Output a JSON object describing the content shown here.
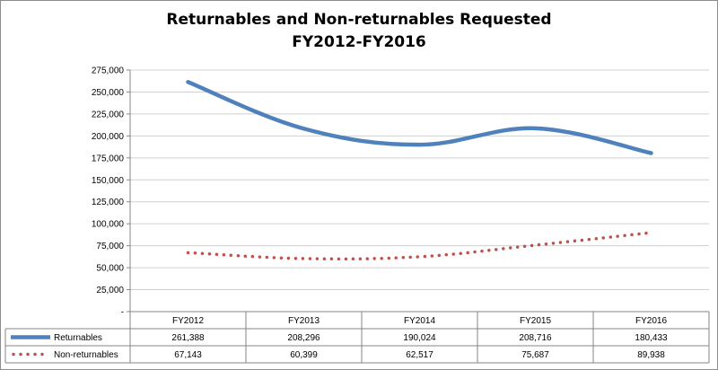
{
  "chart_data": {
    "type": "line",
    "title": "Returnables and Non-returnables Requested",
    "subtitle": "FY2012-FY2016",
    "categories": [
      "FY2012",
      "FY2013",
      "FY2014",
      "FY2015",
      "FY2016"
    ],
    "series": [
      {
        "name": "Returnables",
        "values": [
          261388,
          208296,
          190024,
          208716,
          180433
        ],
        "labels": [
          "261,388",
          "208,296",
          "190,024",
          "208,716",
          "180,433"
        ],
        "color": "#4f81bd",
        "style": "solid"
      },
      {
        "name": "Non-returnables",
        "values": [
          67143,
          60399,
          62517,
          75687,
          89938
        ],
        "labels": [
          "67,143",
          "60,399",
          "62,517",
          "75,687",
          "89,938"
        ],
        "color": "#c0504d",
        "style": "dotted"
      }
    ],
    "ylim": [
      0,
      275000
    ],
    "yticks": [
      0,
      25000,
      50000,
      75000,
      100000,
      125000,
      150000,
      175000,
      200000,
      225000,
      250000,
      275000
    ],
    "ytick_labels": [
      "-",
      "25,000",
      "50,000",
      "75,000",
      "100,000",
      "125,000",
      "150,000",
      "175,000",
      "200,000",
      "225,000",
      "250,000",
      "275,000"
    ],
    "grid": true,
    "legend": "data-table"
  }
}
